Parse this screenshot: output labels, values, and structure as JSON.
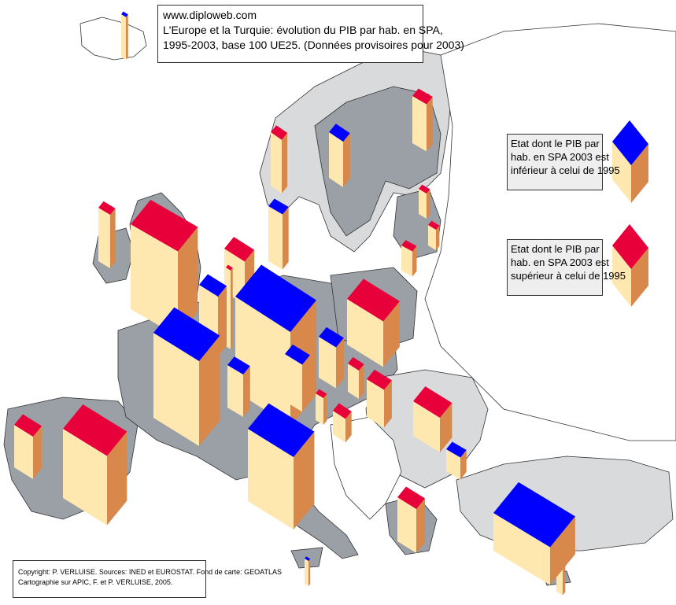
{
  "title": {
    "line1": "www.diploweb.com",
    "line2": "L'Europe  et la Turquie:  évolution du PIB par hab. en SPA,",
    "line3": "1995-2003, base 100 UE25. (Données provisoires pour 2003)"
  },
  "legend": {
    "decrease": {
      "line1": "Etat dont le PIB par",
      "line2": "hab. en SPA 2003 est",
      "line3": "inférieur à celui de 1995",
      "color": "#0000ff"
    },
    "increase": {
      "line1": "Etat dont le PIB par",
      "line2": "hab. en SPA 2003 est",
      "line3": "supérieur à celui de 1995",
      "color": "#e8003a"
    }
  },
  "copyright": {
    "line1": "Copyright: P. VERLUISE.  Sources: INED et EUROSTAT.  Fond de carte: GEOATLAS",
    "line2": "Cartographie sur APIC, F. et P. VERLUISE, 2005."
  },
  "colors": {
    "decrease_top": "#0000ff",
    "increase_top": "#e8003a",
    "box_front": "#ffe8b0",
    "box_side": "#d8884a",
    "eu_land": "#9aa0a6",
    "candidate_land": "#d8dadc",
    "other_land": "#ffffff"
  }
}
